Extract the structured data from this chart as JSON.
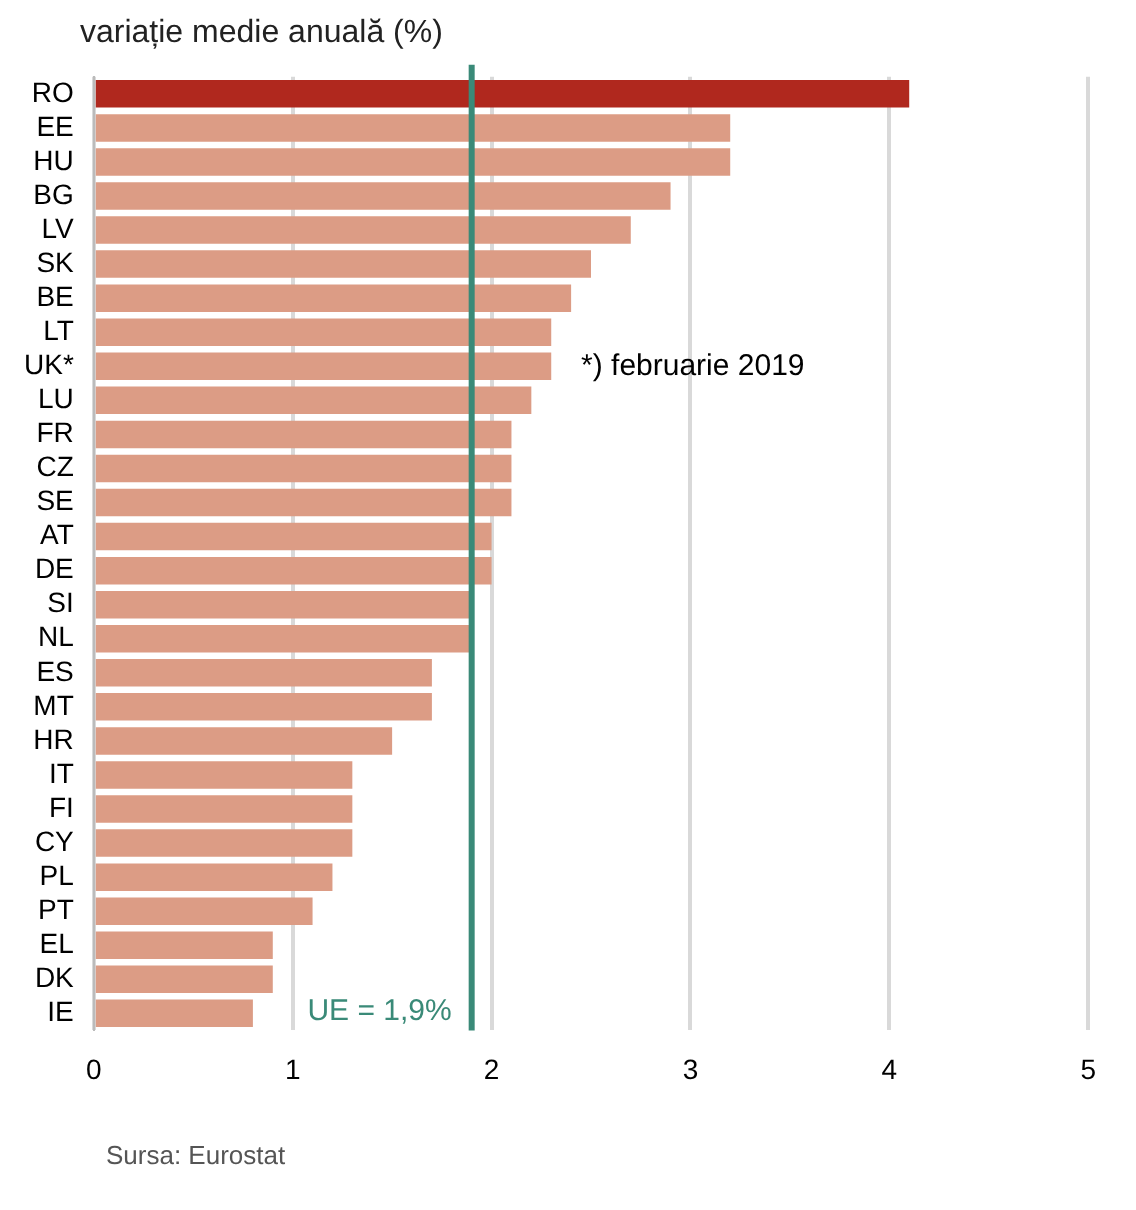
{
  "chart_data": {
    "type": "bar",
    "orientation": "horizontal",
    "title": "variație medie anuală (%)",
    "categories": [
      "RO",
      "EE",
      "HU",
      "BG",
      "LV",
      "SK",
      "BE",
      "LT",
      "UK*",
      "LU",
      "FR",
      "CZ",
      "SE",
      "AT",
      "DE",
      "SI",
      "NL",
      "ES",
      "MT",
      "HR",
      "IT",
      "FI",
      "CY",
      "PL",
      "PT",
      "EL",
      "DK",
      "IE"
    ],
    "values": [
      4.1,
      3.2,
      3.2,
      2.9,
      2.7,
      2.5,
      2.4,
      2.3,
      2.3,
      2.2,
      2.1,
      2.1,
      2.1,
      2.0,
      2.0,
      1.9,
      1.9,
      1.7,
      1.7,
      1.5,
      1.3,
      1.3,
      1.3,
      1.2,
      1.1,
      0.9,
      0.9,
      0.8
    ],
    "colors": [
      "#b0281e",
      "#dc9c85",
      "#dc9c85",
      "#dc9c85",
      "#dc9c85",
      "#dc9c85",
      "#dc9c85",
      "#dc9c85",
      "#dc9c85",
      "#dc9c85",
      "#dc9c85",
      "#dc9c85",
      "#dc9c85",
      "#dc9c85",
      "#dc9c85",
      "#dc9c85",
      "#dc9c85",
      "#dc9c85",
      "#dc9c85",
      "#dc9c85",
      "#dc9c85",
      "#dc9c85",
      "#dc9c85",
      "#dc9c85",
      "#dc9c85",
      "#dc9c85",
      "#dc9c85",
      "#dc9c85"
    ],
    "xlim": [
      0,
      5
    ],
    "xticks": [
      0,
      1,
      2,
      3,
      4,
      5
    ],
    "grid": "x",
    "legend": false,
    "ref_lines": [
      {
        "axis": "x",
        "value": 1.9,
        "label": "UE = 1,9%",
        "color": "#3a8a78"
      }
    ],
    "annotations": [
      "*) februarie 2019",
      "Sursa: Eurostat"
    ]
  }
}
